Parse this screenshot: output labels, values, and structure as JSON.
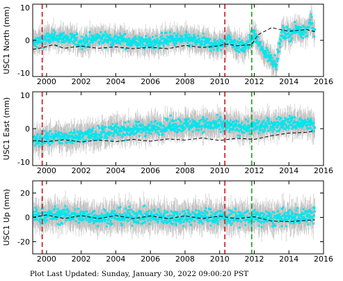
{
  "footer": "Plot Last Updated:   Sunday, January 30, 2022 09:00:20 PST",
  "colors": {
    "error_bar": "#a9a9a9",
    "data": "#00e5ee",
    "model": "#000000",
    "event_red": "#d62728",
    "event_green": "#2ca02c"
  },
  "chart_data": [
    {
      "type": "scatter",
      "ylabel": "USC1 North (mm)",
      "xlim": [
        1999.2,
        2016.0
      ],
      "ylim": [
        -10,
        10
      ],
      "x_ticks": [
        2000,
        2002,
        2004,
        2006,
        2008,
        2010,
        2012,
        2014,
        2016
      ],
      "y_ticks": [
        -10,
        0,
        10
      ],
      "event_lines": [
        {
          "x": 1999.75,
          "color": "red"
        },
        {
          "x": 2010.3,
          "color": "red"
        },
        {
          "x": 2011.85,
          "color": "green"
        }
      ],
      "trend": [
        [
          1999.2,
          -1
        ],
        [
          2000,
          0.5
        ],
        [
          2001,
          0.8
        ],
        [
          2002,
          -0.5
        ],
        [
          2003,
          0.6
        ],
        [
          2004,
          0.2
        ],
        [
          2005,
          -0.4
        ],
        [
          2006,
          -0.8
        ],
        [
          2007,
          0.3
        ],
        [
          2008,
          0.2
        ],
        [
          2009,
          -0.5
        ],
        [
          2010,
          -1.5
        ],
        [
          2010.5,
          0.5
        ],
        [
          2011,
          -1.5
        ],
        [
          2011.5,
          -2
        ],
        [
          2012,
          1.5
        ],
        [
          2012.5,
          -3
        ],
        [
          2013,
          -5
        ],
        [
          2013.3,
          -6
        ],
        [
          2013.6,
          2
        ],
        [
          2014,
          1.8
        ],
        [
          2014.5,
          3
        ],
        [
          2015,
          2.5
        ],
        [
          2015.3,
          6
        ],
        [
          2015.45,
          2
        ]
      ],
      "spread": 2.8,
      "model": [
        [
          1999.2,
          -2.5
        ],
        [
          1999.8,
          -2
        ],
        [
          2000.4,
          -1.2
        ],
        [
          2001,
          -2.2
        ],
        [
          2002,
          -1.6
        ],
        [
          2003,
          -2.2
        ],
        [
          2004,
          -1.8
        ],
        [
          2005,
          -2.3
        ],
        [
          2006,
          -1.9
        ],
        [
          2007,
          -2.3
        ],
        [
          2008,
          -1.4
        ],
        [
          2009,
          -2.0
        ],
        [
          2010,
          -1.5
        ],
        [
          2010.3,
          -1.0
        ],
        [
          2011,
          -1.5
        ],
        [
          2011.85,
          -1.2
        ],
        [
          2012.2,
          1.5
        ],
        [
          2013,
          3.5
        ],
        [
          2014,
          2.5
        ],
        [
          2015,
          3.0
        ],
        [
          2015.5,
          2.4
        ]
      ]
    },
    {
      "type": "scatter",
      "ylabel": "USC1 East (mm)",
      "xlim": [
        1999.2,
        2016.0
      ],
      "ylim": [
        -10,
        10
      ],
      "x_ticks": [
        2000,
        2002,
        2004,
        2006,
        2008,
        2010,
        2012,
        2014,
        2016
      ],
      "y_ticks": [
        -10,
        0,
        10
      ],
      "event_lines": [
        {
          "x": 1999.75,
          "color": "red"
        },
        {
          "x": 2010.3,
          "color": "red"
        },
        {
          "x": 2011.85,
          "color": "green"
        }
      ],
      "trend": [
        [
          1999.2,
          -3.5
        ],
        [
          2000,
          -2.5
        ],
        [
          2001,
          -2.3
        ],
        [
          2002,
          -2.0
        ],
        [
          2003,
          -1.3
        ],
        [
          2004,
          -0.6
        ],
        [
          2005,
          -0.3
        ],
        [
          2006,
          0.2
        ],
        [
          2007,
          0.7
        ],
        [
          2008,
          1.0
        ],
        [
          2009,
          1.2
        ],
        [
          2010,
          0.8
        ],
        [
          2011,
          0.4
        ],
        [
          2012,
          0.5
        ],
        [
          2013,
          0.9
        ],
        [
          2014,
          1.6
        ],
        [
          2015,
          1.3
        ],
        [
          2015.45,
          0.6
        ]
      ],
      "spread": 3.0,
      "model": [
        [
          1999.2,
          -3.2
        ],
        [
          2000,
          -3.5
        ],
        [
          2001,
          -3.0
        ],
        [
          2002,
          -3.6
        ],
        [
          2003,
          -3.1
        ],
        [
          2004,
          -3.5
        ],
        [
          2005,
          -2.9
        ],
        [
          2006,
          -3.4
        ],
        [
          2007,
          -2.8
        ],
        [
          2008,
          -3.1
        ],
        [
          2009,
          -2.5
        ],
        [
          2010,
          -3.2
        ],
        [
          2011,
          -2.6
        ],
        [
          2012,
          -2.9
        ],
        [
          2013,
          -1.9
        ],
        [
          2014,
          -1.2
        ],
        [
          2015,
          -1.0
        ],
        [
          2015.5,
          -0.6
        ]
      ]
    },
    {
      "type": "scatter",
      "ylabel": "USC1 Up (mm)",
      "xlim": [
        1999.2,
        2016.0
      ],
      "ylim": [
        -30,
        30
      ],
      "x_ticks": [
        2000,
        2002,
        2004,
        2006,
        2008,
        2010,
        2012,
        2014,
        2016
      ],
      "y_ticks": [
        -20,
        0,
        20
      ],
      "event_lines": [
        {
          "x": 1999.75,
          "color": "red"
        },
        {
          "x": 2010.3,
          "color": "red"
        },
        {
          "x": 2011.85,
          "color": "green"
        }
      ],
      "trend": [
        [
          1999.2,
          1
        ],
        [
          2001,
          2
        ],
        [
          2003,
          0
        ],
        [
          2005,
          1
        ],
        [
          2007,
          0
        ],
        [
          2009,
          1
        ],
        [
          2011,
          0
        ],
        [
          2013,
          -1
        ],
        [
          2014,
          0
        ],
        [
          2015,
          1
        ],
        [
          2015.45,
          2
        ]
      ],
      "spread": 10,
      "model": [
        [
          1999.2,
          0
        ],
        [
          2000,
          2
        ],
        [
          2001,
          -1
        ],
        [
          2002,
          1.5
        ],
        [
          2003,
          -1
        ],
        [
          2004,
          1.5
        ],
        [
          2005,
          -1
        ],
        [
          2006,
          1.2
        ],
        [
          2007,
          -1
        ],
        [
          2008,
          1.2
        ],
        [
          2009,
          -1
        ],
        [
          2010,
          1
        ],
        [
          2011,
          -1
        ],
        [
          2012,
          0.5
        ],
        [
          2013,
          -3
        ],
        [
          2014,
          -3.5
        ],
        [
          2015,
          -2.5
        ],
        [
          2015.5,
          -2
        ]
      ]
    }
  ]
}
